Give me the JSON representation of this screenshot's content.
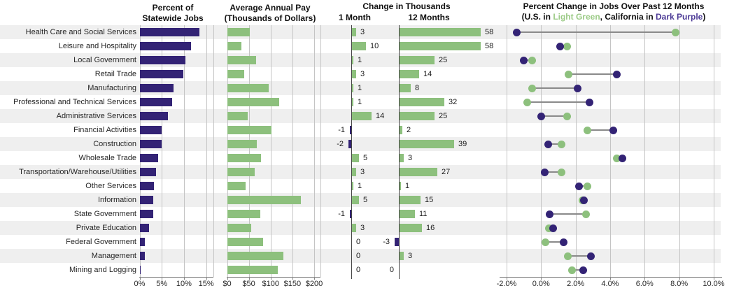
{
  "title_area": {
    "p1_line1": "Percent of",
    "p1_line2": "Statewide Jobs",
    "p2_line1": "Average Annual Pay",
    "p2_line2": "(Thousands of Dollars)",
    "p3_title": "Change in Thousands",
    "p3_col1": "1 Month",
    "p3_col2": "12 Months",
    "p4_title": "Percent Change in Jobs Over Past 12 Months",
    "p4_sub_prefix": "(U.S. in ",
    "p4_sub_us": "Light Green",
    "p4_sub_mid": ", California in ",
    "p4_sub_ca": "Dark Purple",
    "p4_sub_suffix": ")"
  },
  "colors": {
    "dark_purple": "#332375",
    "light_green": "#8dc07d",
    "light_green_text": "#9ccb87",
    "dark_purple_text": "#4c3a96",
    "stripe": "#efefef",
    "grid": "#c4c4c4",
    "axis": "#888888",
    "zero_line": "#444444",
    "connector": "#8a8a8a",
    "text": "#262626"
  },
  "axes": {
    "p1_ticks": [
      "0%",
      "5%",
      "10%",
      "15%"
    ],
    "p2_ticks": [
      "$0",
      "$50",
      "$100",
      "$150",
      "$200"
    ],
    "p4_ticks": [
      "-2.0%",
      "0.0%",
      "2.0%",
      "4.0%",
      "6.0%",
      "8.0%",
      "10.0%"
    ]
  },
  "chart_data": {
    "type": "multi-panel",
    "categories": [
      "Health Care and Social Services",
      "Leisure and Hospitality",
      "Local Government",
      "Retail Trade",
      "Manufacturing",
      "Professional and Technical Services",
      "Administrative Services",
      "Financial Activities",
      "Construction",
      "Wholesale Trade",
      "Transportation/Warehouse/Utilities",
      "Other Services",
      "Information",
      "State Government",
      "Private Education",
      "Federal Government",
      "Management",
      "Mining and Logging"
    ],
    "panels": [
      {
        "type": "bar",
        "title": "Percent of Statewide Jobs",
        "bar_color": "dark_purple",
        "xlim": [
          0,
          15
        ],
        "xtick_values": [
          0,
          5,
          10,
          15
        ],
        "values": [
          13.5,
          11.6,
          10.3,
          9.8,
          7.6,
          7.3,
          6.4,
          4.9,
          5.0,
          4.2,
          3.7,
          3.2,
          3.0,
          3.1,
          2.1,
          1.2,
          1.2,
          0.1
        ]
      },
      {
        "type": "bar",
        "title": "Average Annual Pay (Thousands of Dollars)",
        "bar_color": "light_green",
        "xlim": [
          0,
          200
        ],
        "xtick_values": [
          0,
          50,
          100,
          150,
          200
        ],
        "values": [
          53,
          33,
          67,
          40,
          95,
          120,
          48,
          102,
          69,
          78,
          63,
          42,
          169,
          77,
          56,
          82,
          129,
          116
        ]
      },
      {
        "type": "bar",
        "title": "Change in Thousands",
        "positive_color": "light_green",
        "negative_color": "dark_purple",
        "value_labels": true,
        "series": [
          {
            "name": "1 Month",
            "values": [
              3,
              10,
              1,
              3,
              1,
              1,
              14,
              -1,
              -2,
              5,
              3,
              1,
              5,
              -1,
              3,
              0,
              0,
              0
            ]
          },
          {
            "name": "12 Months",
            "values": [
              58,
              58,
              25,
              14,
              8,
              32,
              25,
              2,
              39,
              3,
              27,
              1,
              15,
              11,
              16,
              -3,
              3,
              0
            ]
          }
        ]
      },
      {
        "type": "dumbbell",
        "title": "Percent Change in Jobs Over Past 12 Months",
        "subtitle": "(U.S. in Light Green, California in Dark Purple)",
        "xlim": [
          -2,
          10
        ],
        "xtick_values": [
          -2,
          0,
          2,
          4,
          6,
          8,
          10
        ],
        "series": [
          {
            "name": "U.S.",
            "color": "light_green",
            "values": [
              7.8,
              1.5,
              -0.5,
              1.6,
              -0.5,
              -0.8,
              1.5,
              2.7,
              1.2,
              4.4,
              1.2,
              2.7,
              2.4,
              2.6,
              0.45,
              0.25,
              1.55,
              1.8
            ]
          },
          {
            "name": "California",
            "color": "dark_purple",
            "values": [
              -1.4,
              1.1,
              -1.0,
              4.4,
              2.1,
              2.8,
              0.0,
              4.2,
              0.4,
              4.7,
              0.2,
              2.2,
              2.5,
              0.5,
              0.7,
              1.3,
              2.9,
              2.45
            ]
          }
        ]
      }
    ]
  }
}
